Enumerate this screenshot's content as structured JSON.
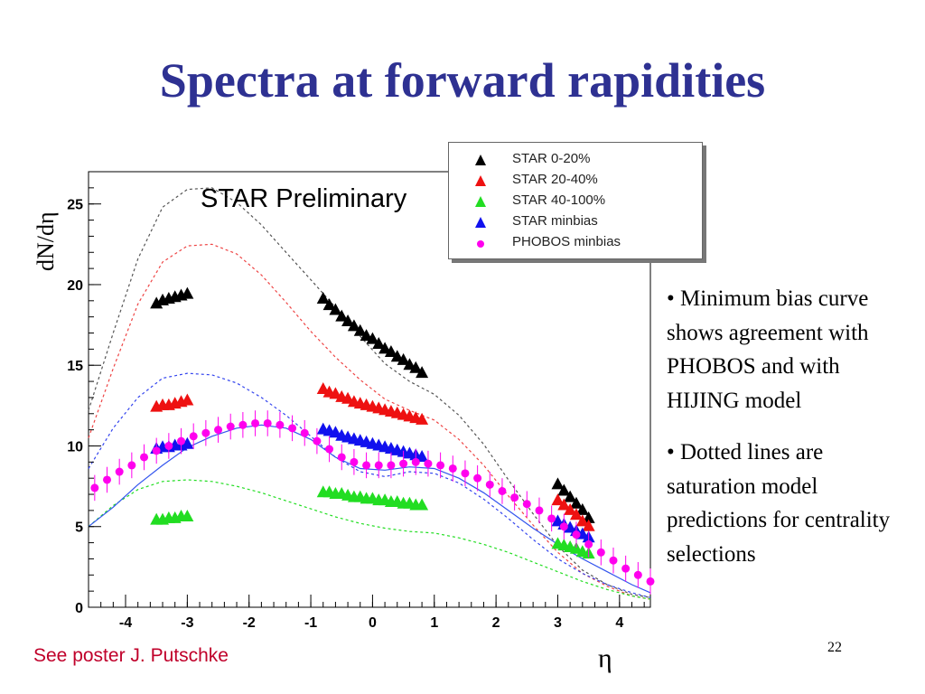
{
  "slide": {
    "title": "Spectra at forward rapidities",
    "annotation": "STAR Preliminary",
    "bullets": [
      "• Minimum bias curve shows agreement with PHOBOS and with HIJING model",
      "• Dotted lines are saturation model predictions for centrality selections"
    ],
    "footer_note": "See poster J. Putschke",
    "page_number": "22"
  },
  "chart_data": {
    "type": "scatter",
    "title": "",
    "xlabel": "η",
    "ylabel": "dN/dη",
    "xlim": [
      -4.6,
      4.5
    ],
    "ylim": [
      0,
      27
    ],
    "x_ticks": [
      -4,
      -3,
      -2,
      -1,
      0,
      1,
      2,
      3,
      4
    ],
    "y_ticks": [
      0,
      5,
      10,
      15,
      20,
      25
    ],
    "legend_position": "top-right",
    "series": [
      {
        "name": "STAR 0-20%",
        "marker": "triangle",
        "color": "#000000",
        "points": [
          [
            -3.5,
            18.8
          ],
          [
            -3.4,
            19.0
          ],
          [
            -3.3,
            19.1
          ],
          [
            -3.2,
            19.2
          ],
          [
            -3.1,
            19.3
          ],
          [
            -3.0,
            19.4
          ],
          [
            -0.8,
            19.1
          ],
          [
            -0.7,
            18.7
          ],
          [
            -0.6,
            18.4
          ],
          [
            -0.5,
            18.0
          ],
          [
            -0.4,
            17.7
          ],
          [
            -0.3,
            17.4
          ],
          [
            -0.2,
            17.1
          ],
          [
            -0.1,
            16.8
          ],
          [
            0.0,
            16.6
          ],
          [
            0.1,
            16.3
          ],
          [
            0.2,
            16.0
          ],
          [
            0.3,
            15.8
          ],
          [
            0.4,
            15.5
          ],
          [
            0.5,
            15.3
          ],
          [
            0.6,
            15.0
          ],
          [
            0.7,
            14.8
          ],
          [
            0.8,
            14.5
          ],
          [
            3.0,
            7.6
          ],
          [
            3.1,
            7.2
          ],
          [
            3.2,
            6.8
          ],
          [
            3.3,
            6.4
          ],
          [
            3.4,
            6.0
          ],
          [
            3.5,
            5.5
          ]
        ]
      },
      {
        "name": "STAR 20-40%",
        "marker": "triangle",
        "color": "#ee1111",
        "points": [
          [
            -3.5,
            12.4
          ],
          [
            -3.4,
            12.5
          ],
          [
            -3.3,
            12.5
          ],
          [
            -3.2,
            12.6
          ],
          [
            -3.1,
            12.7
          ],
          [
            -3.0,
            12.8
          ],
          [
            -0.8,
            13.5
          ],
          [
            -0.7,
            13.3
          ],
          [
            -0.6,
            13.2
          ],
          [
            -0.5,
            13.0
          ],
          [
            -0.4,
            12.9
          ],
          [
            -0.3,
            12.7
          ],
          [
            -0.2,
            12.6
          ],
          [
            -0.1,
            12.5
          ],
          [
            0.0,
            12.4
          ],
          [
            0.1,
            12.3
          ],
          [
            0.2,
            12.2
          ],
          [
            0.3,
            12.1
          ],
          [
            0.4,
            12.0
          ],
          [
            0.5,
            11.9
          ],
          [
            0.6,
            11.8
          ],
          [
            0.7,
            11.7
          ],
          [
            0.8,
            11.6
          ],
          [
            3.0,
            6.6
          ],
          [
            3.1,
            6.3
          ],
          [
            3.2,
            6.0
          ],
          [
            3.3,
            5.7
          ],
          [
            3.4,
            5.3
          ],
          [
            3.5,
            5.0
          ]
        ]
      },
      {
        "name": "STAR 40-100%",
        "marker": "triangle",
        "color": "#22dd22",
        "points": [
          [
            -3.5,
            5.4
          ],
          [
            -3.4,
            5.4
          ],
          [
            -3.3,
            5.5
          ],
          [
            -3.2,
            5.5
          ],
          [
            -3.1,
            5.6
          ],
          [
            -3.0,
            5.6
          ],
          [
            -0.8,
            7.1
          ],
          [
            -0.7,
            7.1
          ],
          [
            -0.6,
            7.0
          ],
          [
            -0.5,
            7.0
          ],
          [
            -0.4,
            6.9
          ],
          [
            -0.3,
            6.8
          ],
          [
            -0.2,
            6.8
          ],
          [
            -0.1,
            6.7
          ],
          [
            0.0,
            6.7
          ],
          [
            0.1,
            6.6
          ],
          [
            0.2,
            6.6
          ],
          [
            0.3,
            6.5
          ],
          [
            0.4,
            6.5
          ],
          [
            0.5,
            6.4
          ],
          [
            0.6,
            6.4
          ],
          [
            0.7,
            6.3
          ],
          [
            0.8,
            6.3
          ],
          [
            3.0,
            3.9
          ],
          [
            3.1,
            3.8
          ],
          [
            3.2,
            3.7
          ],
          [
            3.3,
            3.6
          ],
          [
            3.4,
            3.4
          ],
          [
            3.5,
            3.3
          ]
        ]
      },
      {
        "name": "STAR minbias",
        "marker": "triangle",
        "color": "#1111ee",
        "points": [
          [
            -3.5,
            9.8
          ],
          [
            -3.4,
            9.9
          ],
          [
            -3.3,
            9.9
          ],
          [
            -3.2,
            10.0
          ],
          [
            -3.1,
            10.0
          ],
          [
            -3.0,
            10.1
          ],
          [
            -0.8,
            11.0
          ],
          [
            -0.7,
            10.9
          ],
          [
            -0.6,
            10.8
          ],
          [
            -0.5,
            10.6
          ],
          [
            -0.4,
            10.5
          ],
          [
            -0.3,
            10.4
          ],
          [
            -0.2,
            10.3
          ],
          [
            -0.1,
            10.2
          ],
          [
            0.0,
            10.1
          ],
          [
            0.1,
            10.0
          ],
          [
            0.2,
            9.9
          ],
          [
            0.3,
            9.8
          ],
          [
            0.4,
            9.7
          ],
          [
            0.5,
            9.6
          ],
          [
            0.6,
            9.5
          ],
          [
            0.7,
            9.4
          ],
          [
            0.8,
            9.3
          ],
          [
            3.0,
            5.3
          ],
          [
            3.1,
            5.1
          ],
          [
            3.2,
            4.9
          ],
          [
            3.3,
            4.7
          ],
          [
            3.4,
            4.5
          ],
          [
            3.5,
            4.3
          ]
        ]
      },
      {
        "name": "PHOBOS minbias",
        "marker": "circle",
        "color": "#ff00ee",
        "error": 0.8,
        "points": [
          [
            -4.5,
            7.4
          ],
          [
            -4.3,
            7.9
          ],
          [
            -4.1,
            8.4
          ],
          [
            -3.9,
            8.8
          ],
          [
            -3.7,
            9.3
          ],
          [
            -3.5,
            9.7
          ],
          [
            -3.3,
            10.0
          ],
          [
            -3.1,
            10.3
          ],
          [
            -2.9,
            10.6
          ],
          [
            -2.7,
            10.8
          ],
          [
            -2.5,
            11.0
          ],
          [
            -2.3,
            11.2
          ],
          [
            -2.1,
            11.3
          ],
          [
            -1.9,
            11.4
          ],
          [
            -1.7,
            11.4
          ],
          [
            -1.5,
            11.3
          ],
          [
            -1.3,
            11.1
          ],
          [
            -1.1,
            10.8
          ],
          [
            -0.9,
            10.3
          ],
          [
            -0.7,
            9.8
          ],
          [
            -0.5,
            9.3
          ],
          [
            -0.3,
            9.0
          ],
          [
            -0.1,
            8.8
          ],
          [
            0.1,
            8.8
          ],
          [
            0.3,
            8.8
          ],
          [
            0.5,
            8.9
          ],
          [
            0.7,
            9.0
          ],
          [
            0.9,
            8.9
          ],
          [
            1.1,
            8.8
          ],
          [
            1.3,
            8.6
          ],
          [
            1.5,
            8.3
          ],
          [
            1.7,
            8.0
          ],
          [
            1.9,
            7.6
          ],
          [
            2.1,
            7.2
          ],
          [
            2.3,
            6.8
          ],
          [
            2.5,
            6.4
          ],
          [
            2.7,
            6.0
          ],
          [
            2.9,
            5.5
          ],
          [
            3.1,
            5.0
          ],
          [
            3.3,
            4.5
          ],
          [
            3.5,
            3.9
          ],
          [
            3.7,
            3.4
          ],
          [
            3.9,
            2.9
          ],
          [
            4.1,
            2.4
          ],
          [
            4.3,
            2.0
          ],
          [
            4.5,
            1.6
          ]
        ]
      }
    ],
    "lines": [
      {
        "series": "saturation 0-20%",
        "style": "dotted",
        "color": "#555555",
        "points": [
          [
            -4.6,
            12.2
          ],
          [
            -4.2,
            17.0
          ],
          [
            -3.8,
            21.6
          ],
          [
            -3.4,
            24.8
          ],
          [
            -3.0,
            25.9
          ],
          [
            -2.6,
            26.0
          ],
          [
            -2.2,
            25.1
          ],
          [
            -1.8,
            23.7
          ],
          [
            -1.4,
            22.0
          ],
          [
            -1.0,
            20.3
          ],
          [
            -0.6,
            18.6
          ],
          [
            -0.2,
            16.8
          ],
          [
            0.2,
            15.1
          ],
          [
            0.6,
            14.0
          ],
          [
            1.0,
            13.2
          ],
          [
            1.4,
            11.9
          ],
          [
            1.8,
            10.1
          ],
          [
            2.2,
            7.9
          ],
          [
            2.6,
            5.8
          ],
          [
            3.0,
            3.8
          ],
          [
            3.4,
            2.3
          ],
          [
            3.8,
            1.4
          ],
          [
            4.2,
            0.8
          ],
          [
            4.5,
            0.6
          ]
        ]
      },
      {
        "series": "saturation 20-40%",
        "style": "dotted",
        "color": "#ee4444",
        "points": [
          [
            -4.6,
            10.5
          ],
          [
            -4.2,
            14.8
          ],
          [
            -3.8,
            18.8
          ],
          [
            -3.4,
            21.4
          ],
          [
            -3.0,
            22.4
          ],
          [
            -2.6,
            22.5
          ],
          [
            -2.2,
            21.9
          ],
          [
            -1.8,
            20.6
          ],
          [
            -1.4,
            18.9
          ],
          [
            -1.0,
            17.1
          ],
          [
            -0.6,
            15.5
          ],
          [
            -0.2,
            14.1
          ],
          [
            0.2,
            12.9
          ],
          [
            0.6,
            12.2
          ],
          [
            1.0,
            11.6
          ],
          [
            1.4,
            10.4
          ],
          [
            1.8,
            8.8
          ],
          [
            2.2,
            6.9
          ],
          [
            2.6,
            5.1
          ],
          [
            3.0,
            3.4
          ],
          [
            3.4,
            2.1
          ],
          [
            3.8,
            1.3
          ],
          [
            4.2,
            0.7
          ],
          [
            4.5,
            0.5
          ]
        ]
      },
      {
        "series": "saturation 40-100%",
        "style": "dotted",
        "color": "#22dd22",
        "points": [
          [
            -4.6,
            5.0
          ],
          [
            -4.2,
            6.3
          ],
          [
            -3.8,
            7.3
          ],
          [
            -3.4,
            7.8
          ],
          [
            -3.0,
            7.9
          ],
          [
            -2.6,
            7.8
          ],
          [
            -2.2,
            7.5
          ],
          [
            -1.8,
            7.1
          ],
          [
            -1.4,
            6.6
          ],
          [
            -1.0,
            6.1
          ],
          [
            -0.6,
            5.6
          ],
          [
            -0.2,
            5.2
          ],
          [
            0.2,
            4.9
          ],
          [
            0.6,
            4.7
          ],
          [
            1.0,
            4.6
          ],
          [
            1.4,
            4.3
          ],
          [
            1.8,
            3.9
          ],
          [
            2.2,
            3.4
          ],
          [
            2.6,
            2.8
          ],
          [
            3.0,
            2.2
          ],
          [
            3.4,
            1.6
          ],
          [
            3.8,
            1.1
          ],
          [
            4.2,
            0.7
          ],
          [
            4.5,
            0.5
          ]
        ]
      },
      {
        "series": "saturation minbias",
        "style": "dotted",
        "color": "#3344ee",
        "points": [
          [
            -4.6,
            8.6
          ],
          [
            -4.2,
            11.1
          ],
          [
            -3.8,
            13.0
          ],
          [
            -3.4,
            14.2
          ],
          [
            -3.0,
            14.5
          ],
          [
            -2.6,
            14.4
          ],
          [
            -2.2,
            13.9
          ],
          [
            -1.8,
            13.0
          ],
          [
            -1.4,
            11.9
          ],
          [
            -1.0,
            10.6
          ],
          [
            -0.6,
            9.3
          ],
          [
            -0.2,
            8.4
          ],
          [
            0.2,
            8.1
          ],
          [
            0.6,
            8.4
          ],
          [
            1.0,
            8.3
          ],
          [
            1.4,
            7.7
          ],
          [
            1.8,
            6.7
          ],
          [
            2.2,
            5.5
          ],
          [
            2.6,
            4.2
          ],
          [
            3.0,
            3.0
          ],
          [
            3.4,
            2.1
          ],
          [
            3.8,
            1.4
          ],
          [
            4.2,
            0.9
          ],
          [
            4.5,
            0.6
          ]
        ]
      },
      {
        "series": "HIJING minbias",
        "style": "solid",
        "color": "#3355ee",
        "points": [
          [
            -4.6,
            5.0
          ],
          [
            -4.2,
            6.2
          ],
          [
            -3.8,
            7.6
          ],
          [
            -3.4,
            8.8
          ],
          [
            -3.0,
            9.9
          ],
          [
            -2.6,
            10.6
          ],
          [
            -2.2,
            11.1
          ],
          [
            -1.8,
            11.3
          ],
          [
            -1.4,
            11.1
          ],
          [
            -1.0,
            10.4
          ],
          [
            -0.6,
            9.3
          ],
          [
            -0.2,
            8.6
          ],
          [
            0.2,
            8.5
          ],
          [
            0.6,
            8.7
          ],
          [
            1.0,
            8.6
          ],
          [
            1.4,
            8.0
          ],
          [
            1.8,
            7.1
          ],
          [
            2.2,
            6.0
          ],
          [
            2.6,
            4.9
          ],
          [
            3.0,
            3.9
          ],
          [
            3.4,
            3.0
          ],
          [
            3.8,
            2.2
          ],
          [
            4.2,
            1.4
          ],
          [
            4.5,
            0.9
          ]
        ]
      }
    ]
  }
}
